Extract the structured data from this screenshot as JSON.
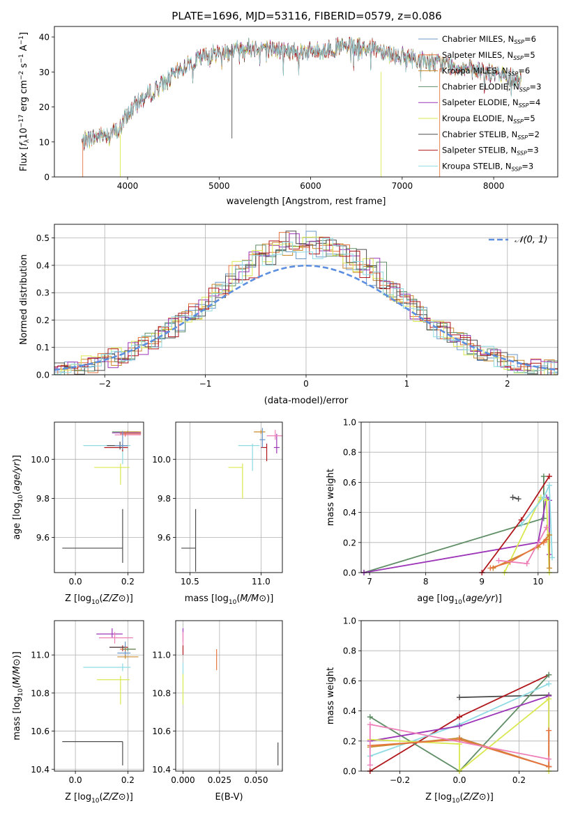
{
  "page": {
    "title": "PLATE=1696, MJD=53116, FIBERID=0579, z=0.086"
  },
  "colors": {
    "Chabrier MILES": "#6a97c9",
    "Salpeter MILES": "#e6753f",
    "Kroupa MILES": "#c98a2d",
    "Chabrier ELODIE": "#5f8e66",
    "Salpeter ELODIE": "#9c35b8",
    "Kroupa ELODIE": "#d9e84f",
    "Chabrier STELIB": "#4d4d4d",
    "Salpeter STELIB": "#b0161b",
    "Kroupa STELIB": "#8fdbe3",
    "normal": "#5b8ee0",
    "pink": "#ee7fb8"
  },
  "chart_data": [
    {
      "id": "spectrum",
      "type": "line",
      "title": "PLATE=1696, MJD=53116, FIBERID=0579, z=0.086",
      "xlabel": "wavelength [Angstrom, rest frame]",
      "ylabel_parts": [
        "Flux [",
        "f",
        "λ",
        "10",
        "−17",
        " erg cm",
        "−2",
        " s",
        "−1",
        " A",
        "−1",
        "]"
      ],
      "xlim": [
        3200,
        8700
      ],
      "ylim": [
        0,
        43
      ],
      "xticks": [
        4000,
        5000,
        6000,
        7000,
        8000
      ],
      "yticks": [
        0,
        10,
        20,
        30,
        40
      ],
      "envelope_x": [
        3500,
        3700,
        3900,
        4000,
        4100,
        4300,
        4500,
        4700,
        4900,
        5100,
        5300,
        5500,
        5700,
        5900,
        6100,
        6300,
        6500,
        6700,
        6900,
        7100,
        7300,
        7500,
        7700,
        7900,
        8100,
        8300
      ],
      "envelope_y": [
        10,
        12,
        13,
        18,
        21,
        25,
        29,
        33,
        35,
        36,
        37,
        37,
        36,
        36,
        36,
        37,
        37,
        37,
        35,
        34,
        33,
        32,
        31,
        30,
        29,
        28
      ],
      "legend": [
        {
          "key": "Chabrier MILES",
          "label": "Chabrier MILES, N",
          "sub": "SSP",
          "n": "=6"
        },
        {
          "key": "Salpeter MILES",
          "label": "Salpeter MILES, N",
          "sub": "SSP",
          "n": "=5"
        },
        {
          "key": "Kroupa MILES",
          "label": "Kroupa MILES, N",
          "sub": "SSP",
          "n": "=6"
        },
        {
          "key": "Chabrier ELODIE",
          "label": "Chabrier ELODIE, N",
          "sub": "SSP",
          "n": "=3"
        },
        {
          "key": "Salpeter ELODIE",
          "label": "Salpeter ELODIE, N",
          "sub": "SSP",
          "n": "=4"
        },
        {
          "key": "Kroupa ELODIE",
          "label": "Kroupa ELODIE, N",
          "sub": "SSP",
          "n": "=5"
        },
        {
          "key": "Chabrier STELIB",
          "label": "Chabrier STELIB, N",
          "sub": "SSP",
          "n": "=2"
        },
        {
          "key": "Salpeter STELIB",
          "label": "Salpeter STELIB, N",
          "sub": "SSP",
          "n": "=3"
        },
        {
          "key": "Kroupa STELIB",
          "label": "Kroupa STELIB, N",
          "sub": "SSP",
          "n": "=3"
        }
      ],
      "legend_placement": "top-right"
    },
    {
      "id": "residuals",
      "type": "histogram",
      "xlabel": "(data-model)/error",
      "ylabel": "Normed distribution",
      "xlim": [
        -2.5,
        2.5
      ],
      "ylim": [
        0,
        0.55
      ],
      "xticks": [
        -2,
        -1,
        0,
        1,
        2
      ],
      "yticks": [
        0.0,
        0.1,
        0.2,
        0.3,
        0.4,
        0.5
      ],
      "legend_label": "𝒩(0, 1)",
      "legend_placement": "top-right",
      "grid": true
    },
    {
      "id": "age_vs_Z",
      "type": "scatter",
      "xlabel": "Z [log10(Z/Z⊙)]",
      "ylabel": "age  [log10(age/yr)]",
      "xlim": [
        -0.08,
        0.26
      ],
      "ylim": [
        9.42,
        10.19
      ],
      "xticks": [
        0.0,
        0.2
      ],
      "yticks": [
        9.6,
        9.8,
        10.0
      ],
      "points": [
        {
          "key": "Chabrier STELIB",
          "x": 0.18,
          "y": 9.545,
          "xerr": [
            0.23,
            0.0
          ],
          "yerr": [
            0.075,
            0.2
          ]
        },
        {
          "key": "Kroupa ELODIE",
          "x": 0.172,
          "y": 9.958,
          "xerr": [
            0.1,
            0.035
          ],
          "yerr": [
            0.088,
            0.02
          ]
        },
        {
          "key": "Kroupa STELIB",
          "x": 0.18,
          "y": 10.07,
          "xerr": [
            0.15,
            0.03
          ],
          "yerr": [
            0.095,
            0.01
          ]
        },
        {
          "key": "Salpeter STELIB",
          "x": 0.18,
          "y": 10.06,
          "xerr": [
            0.07,
            0.02
          ],
          "yerr": [
            0.02,
            0.02
          ]
        },
        {
          "key": "Chabrier STELIB",
          "x": 0.17,
          "y": 10.07,
          "xerr": [
            0.05,
            0.03
          ],
          "yerr": [
            0.02,
            0.02
          ]
        },
        {
          "key": "Salpeter ELODIE",
          "x": 0.19,
          "y": 10.135,
          "xerr": [
            0.05,
            0.06
          ],
          "yerr": [
            0.01,
            0.005
          ]
        },
        {
          "key": "Chabrier ELODIE",
          "x": 0.2,
          "y": 10.14,
          "xerr": [
            0.06,
            0.04
          ],
          "yerr": [
            0.005,
            0.005
          ]
        },
        {
          "key": "pink",
          "x": 0.19,
          "y": 10.125,
          "xerr": [
            0.04,
            0.06
          ],
          "yerr": [
            0.01,
            0.01
          ]
        },
        {
          "key": "Kroupa MILES",
          "x": 0.2,
          "y": 10.14,
          "xerr": [
            0.03,
            0.05
          ],
          "yerr": [
            0.005,
            0.005
          ]
        },
        {
          "key": "Salpeter MILES",
          "x": 0.19,
          "y": 10.13,
          "xerr": [
            0.02,
            0.06
          ],
          "yerr": [
            0.01,
            0.01
          ]
        },
        {
          "key": "Chabrier MILES",
          "x": 0.18,
          "y": 10.07,
          "xerr": [
            0.03,
            0.02
          ],
          "yerr": [
            0.02,
            0.075
          ]
        }
      ]
    },
    {
      "id": "age_vs_mass",
      "type": "scatter",
      "xlabel": "mass [log10(M/M⊙)]",
      "ylabel": "",
      "xlim": [
        10.4,
        11.15
      ],
      "ylim": [
        9.42,
        10.19
      ],
      "xticks": [
        10.5,
        11.0
      ],
      "yticks": [
        9.6,
        9.8,
        10.0
      ],
      "points": [
        {
          "key": "Chabrier STELIB",
          "x": 10.54,
          "y": 9.545,
          "xerr": [
            0.1,
            0.0
          ],
          "yerr": [
            0.12,
            0.2
          ]
        },
        {
          "key": "Kroupa ELODIE",
          "x": 10.87,
          "y": 9.958,
          "xerr": [
            0.1,
            0.0
          ],
          "yerr": [
            0.16,
            0.02
          ]
        },
        {
          "key": "Kroupa STELIB",
          "x": 10.94,
          "y": 10.07,
          "xerr": [
            0.1,
            0.05
          ],
          "yerr": [
            0.13,
            0.01
          ]
        },
        {
          "key": "Salpeter STELIB",
          "x": 11.04,
          "y": 10.06,
          "xerr": [
            0.04,
            0.0
          ],
          "yerr": [
            0.07,
            0.02
          ]
        },
        {
          "key": "Salpeter ELODIE",
          "x": 11.11,
          "y": 10.06,
          "xerr": [
            0.02,
            0.02
          ],
          "yerr": [
            0.03,
            0.07
          ]
        },
        {
          "key": "pink",
          "x": 11.1,
          "y": 10.12,
          "xerr": [
            0.06,
            0.05
          ],
          "yerr": [
            0.02,
            0.03
          ]
        },
        {
          "key": "Kroupa MILES",
          "x": 11.0,
          "y": 10.14,
          "xerr": [
            0.05,
            0.03
          ],
          "yerr": [
            0.01,
            0.01
          ]
        },
        {
          "key": "Chabrier MILES",
          "x": 11.01,
          "y": 10.1,
          "xerr": [
            0.02,
            0.02
          ],
          "yerr": [
            0.04,
            0.06
          ]
        }
      ]
    },
    {
      "id": "weight_vs_age",
      "type": "line",
      "xlabel": "age  [log10(age/yr)]",
      "ylabel": "mass weight",
      "xlim": [
        6.85,
        10.35
      ],
      "ylim": [
        0,
        1.0
      ],
      "xticks": [
        7,
        8,
        9,
        10
      ],
      "yticks": [
        0.0,
        0.2,
        0.4,
        0.6,
        0.8,
        1.0
      ],
      "series": [
        {
          "key": "Chabrier ELODIE",
          "x": [
            6.9,
            10.1,
            10.1
          ],
          "y": [
            0.0,
            0.36,
            0.64
          ]
        },
        {
          "key": "Salpeter ELODIE",
          "x": [
            6.9,
            10.0,
            10.15,
            10.2,
            10.2
          ],
          "y": [
            0.0,
            0.2,
            0.5,
            0.48,
            0.12
          ]
        },
        {
          "key": "Salpeter STELIB",
          "x": [
            9.0,
            9.7,
            10.2
          ],
          "y": [
            0.0,
            0.35,
            0.64
          ]
        },
        {
          "key": "Kroupa ELODIE",
          "x": [
            9.4,
            10.05,
            10.15,
            10.2
          ],
          "y": [
            0.0,
            0.5,
            0.48,
            0.0
          ]
        },
        {
          "key": "Kroupa STELIB",
          "x": [
            9.7,
            10.1,
            10.2,
            10.25
          ],
          "y": [
            0.32,
            0.5,
            0.58,
            0.1
          ]
        },
        {
          "key": "Kroupa MILES",
          "x": [
            9.2,
            10.0,
            10.2,
            10.2
          ],
          "y": [
            0.03,
            0.17,
            0.25,
            0.03
          ]
        },
        {
          "key": "Salpeter MILES",
          "x": [
            9.15,
            9.5,
            10.1,
            10.15
          ],
          "y": [
            0.03,
            0.07,
            0.2,
            0.22
          ]
        },
        {
          "key": "pink",
          "x": [
            9.3,
            9.8,
            10.15
          ],
          "y": [
            0.08,
            0.06,
            0.3
          ]
        },
        {
          "key": "Chabrier STELIB",
          "x": [
            9.55,
            9.65
          ],
          "y": [
            0.5,
            0.49
          ]
        }
      ]
    },
    {
      "id": "mass_vs_Z",
      "type": "scatter",
      "xlabel": "Z [log10(Z/Z⊙)]",
      "ylabel": "mass [log10(M/M⊙)]",
      "xlim": [
        -0.08,
        0.26
      ],
      "ylim": [
        10.39,
        11.18
      ],
      "xticks": [
        0.0,
        0.2
      ],
      "yticks": [
        10.4,
        10.6,
        10.8,
        11.0
      ],
      "points": [
        {
          "key": "Chabrier STELIB",
          "x": 0.18,
          "y": 10.545,
          "xerr": [
            0.23,
            0.0
          ],
          "yerr": [
            0.125,
            0.0
          ]
        },
        {
          "key": "Kroupa ELODIE",
          "x": 0.172,
          "y": 10.87,
          "xerr": [
            0.09,
            0.035
          ],
          "yerr": [
            0.13,
            0.02
          ]
        },
        {
          "key": "Kroupa STELIB",
          "x": 0.18,
          "y": 10.935,
          "xerr": [
            0.15,
            0.03
          ],
          "yerr": [
            0.02,
            0.02
          ]
        },
        {
          "key": "Salpeter STELIB",
          "x": 0.18,
          "y": 11.04,
          "xerr": [
            0.05,
            0.02
          ],
          "yerr": [
            0.02,
            0.01
          ]
        },
        {
          "key": "Chabrier STELIB",
          "x": 0.19,
          "y": 11.04,
          "xerr": [
            0.06,
            0.0
          ],
          "yerr": [
            0.02,
            0.01
          ]
        },
        {
          "key": "Salpeter ELODIE",
          "x": 0.14,
          "y": 11.11,
          "xerr": [
            0.06,
            0.04
          ],
          "yerr": [
            0.02,
            0.03
          ]
        },
        {
          "key": "pink",
          "x": 0.15,
          "y": 11.09,
          "xerr": [
            0.06,
            0.07
          ],
          "yerr": [
            0.03,
            0.03
          ]
        },
        {
          "key": "Chabrier MILES",
          "x": 0.19,
          "y": 11.01,
          "xerr": [
            0.03,
            0.02
          ],
          "yerr": [
            0.02,
            0.06
          ]
        },
        {
          "key": "Kroupa MILES",
          "x": 0.19,
          "y": 10.99,
          "xerr": [
            0.03,
            0.05
          ],
          "yerr": [
            0.01,
            0.01
          ]
        },
        {
          "key": "Salpeter MILES",
          "x": 0.19,
          "y": 11.03,
          "xerr": [
            0.02,
            0.04
          ],
          "yerr": [
            0.01,
            0.01
          ]
        },
        {
          "key": "Chabrier ELODIE",
          "x": 0.2,
          "y": 11.03,
          "xerr": [
            0.02,
            0.03
          ],
          "yerr": [
            0.01,
            0.01
          ]
        }
      ]
    },
    {
      "id": "mass_vs_ebv",
      "type": "scatter",
      "xlabel": "E(B-V)",
      "ylabel": "",
      "xlim": [
        -0.005,
        0.068
      ],
      "ylim": [
        10.39,
        11.18
      ],
      "xticks": [
        0.0,
        0.025,
        0.05
      ],
      "xticklabels": [
        "0.000",
        "0.025",
        "0.050"
      ],
      "yticks": [
        10.4,
        10.6,
        10.8,
        11.0
      ],
      "points": [
        {
          "key": "Chabrier STELIB",
          "x": 0.065,
          "y": 10.5,
          "xerr": [
            0,
            0
          ],
          "yerr": [
            0.08,
            0.04
          ]
        },
        {
          "key": "Salpeter MILES",
          "x": 0.023,
          "y": 10.99,
          "xerr": [
            0,
            0
          ],
          "yerr": [
            0.07,
            0.04
          ]
        },
        {
          "key": "Kroupa ELODIE",
          "x": 0.0,
          "y": 10.85,
          "xerr": [
            0,
            0
          ],
          "yerr": [
            0.11,
            0.05
          ]
        },
        {
          "key": "Kroupa STELIB",
          "x": 0.0,
          "y": 10.93,
          "xerr": [
            0,
            0
          ],
          "yerr": [
            0.03,
            0.03
          ]
        },
        {
          "key": "Salpeter STELIB",
          "x": 0.0,
          "y": 11.03,
          "xerr": [
            0,
            0
          ],
          "yerr": [
            0.03,
            0.02
          ]
        },
        {
          "key": "Salpeter ELODIE",
          "x": 0.0,
          "y": 11.1,
          "xerr": [
            0,
            0
          ],
          "yerr": [
            0.03,
            0.04
          ]
        },
        {
          "key": "pink",
          "x": 0.0,
          "y": 11.08,
          "xerr": [
            0,
            0
          ],
          "yerr": [
            0.03,
            0.04
          ]
        }
      ]
    },
    {
      "id": "weight_vs_Z",
      "type": "line",
      "xlabel": "Z [log10(Z/Z⊙)]",
      "ylabel": "mass weight",
      "xlim": [
        -0.33,
        0.33
      ],
      "ylim": [
        0,
        1.0
      ],
      "xticks": [
        -0.2,
        0.0,
        0.2
      ],
      "yticks": [
        0.0,
        0.2,
        0.4,
        0.6,
        0.8,
        1.0
      ],
      "series": [
        {
          "key": "Chabrier STELIB",
          "x": [
            0.0,
            0.3
          ],
          "y": [
            0.49,
            0.505
          ]
        },
        {
          "key": "Salpeter STELIB",
          "x": [
            -0.3,
            0.0,
            0.3
          ],
          "y": [
            0.0,
            0.36,
            0.64
          ]
        },
        {
          "key": "Chabrier ELODIE",
          "x": [
            -0.3,
            0.0,
            0.3
          ],
          "y": [
            0.36,
            0.0,
            0.64
          ]
        },
        {
          "key": "Kroupa STELIB",
          "x": [
            -0.3,
            0.0,
            0.3
          ],
          "y": [
            0.1,
            0.31,
            0.58
          ]
        },
        {
          "key": "Salpeter ELODIE",
          "x": [
            -0.3,
            0.0,
            0.3,
            0.3,
            0.0,
            0.3
          ],
          "y": [
            0.2,
            0.3,
            0.5,
            0.03,
            0.22,
            0.03
          ]
        },
        {
          "key": "Kroupa ELODIE",
          "x": [
            -0.3,
            0.0,
            0.0,
            0.3,
            0.3
          ],
          "y": [
            0.21,
            0.18,
            0.0,
            0.48,
            0.0
          ]
        },
        {
          "key": "Kroupa MILES",
          "x": [
            -0.3,
            0.0,
            0.3
          ],
          "y": [
            0.16,
            0.22,
            0.03
          ]
        },
        {
          "key": "Salpeter MILES",
          "x": [
            -0.3,
            0.0,
            0.3,
            0.3
          ],
          "y": [
            0.17,
            0.21,
            0.03,
            0.27
          ]
        },
        {
          "key": "pink",
          "x": [
            -0.3,
            -0.3,
            0.3
          ],
          "y": [
            0.04,
            0.31,
            0.08
          ]
        }
      ]
    }
  ]
}
